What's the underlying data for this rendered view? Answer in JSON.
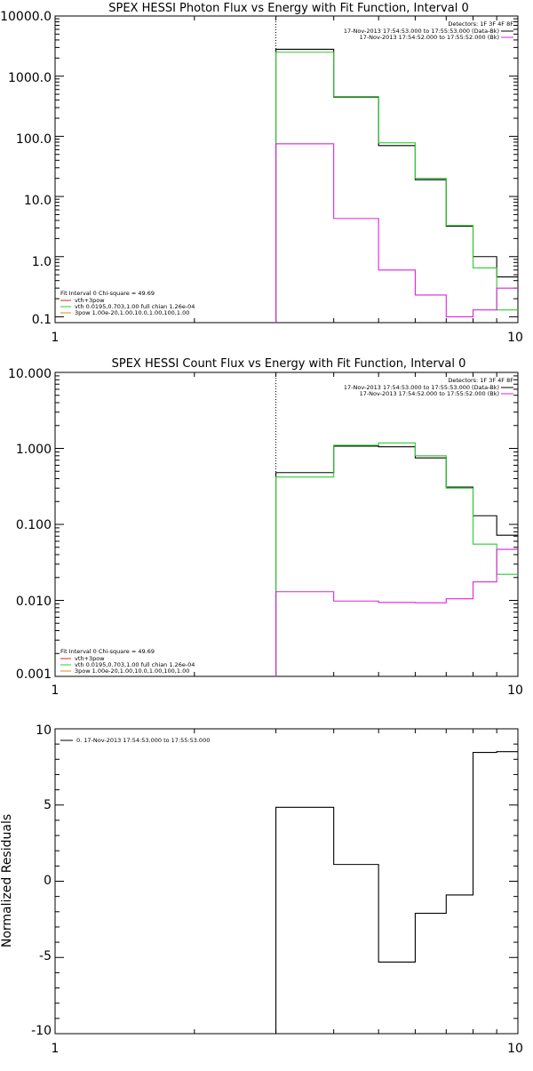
{
  "colors": {
    "background": "#ffffff",
    "axis": "#000000",
    "data": "#000000",
    "model": "#2ecc2e",
    "background_component": "#dd22dd",
    "red_comp": "#dd2222",
    "orange_comp": "#e08a1e"
  },
  "chart_data": [
    {
      "type": "line",
      "subtype": "step",
      "title": "SPEX HESSI Photon Flux vs Energy with Fit Function, Interval 0",
      "x_scale": "log",
      "y_scale": "log",
      "xlim": [
        1,
        10
      ],
      "ylim": [
        0.08,
        10000
      ],
      "x_tick_labels": [
        "1",
        "10"
      ],
      "y_tick_labels": [
        "10000.0",
        "1000.0",
        "100.0",
        "10.0",
        "1.0",
        "0.1"
      ],
      "y_ticks": [
        10000,
        1000,
        100,
        10,
        1,
        0.1
      ],
      "vline_x": 3,
      "bin_edges": [
        3,
        4,
        5,
        6,
        7,
        8,
        9,
        10
      ],
      "series": [
        {
          "values": [
            2800,
            450,
            70,
            19,
            3.2,
            1.0,
            0.46
          ],
          "color": "#000000"
        },
        {
          "values": [
            2500,
            460,
            78,
            20,
            3.3,
            0.65,
            0.13
          ],
          "color": "#2ecc2e"
        },
        {
          "values": [
            75,
            4.3,
            0.6,
            0.23,
            0.1,
            0.13,
            0.3
          ],
          "color": "#dd22dd"
        }
      ],
      "legend_topright": {
        "header": "Detectors: 1F 3F 4F 8F",
        "entries": [
          {
            "text": "17-Nov-2013 17:54:53.000 to 17:55:53.000 (Data-Bk)",
            "color": "#000000"
          },
          {
            "text": "17-Nov-2013 17:54:52.000 to 17:55:52.000 (Bk)",
            "color": "#dd22dd"
          }
        ]
      },
      "legend_bottomleft": {
        "header": "Fit Interval 0   Chi-square = 49.69",
        "entries": [
          {
            "text": "vth+3pow",
            "color": "#dd2222"
          },
          {
            "text": "vth 0.0195,0.703,1.00  full chian 1.26e-04",
            "color": "#2ecc2e"
          },
          {
            "text": "3pow 1.00e-20,1.00,10.0,1.00,100,1.00",
            "color": "#e08a1e"
          }
        ]
      }
    },
    {
      "type": "line",
      "subtype": "step",
      "title": "SPEX HESSI Count Flux vs Energy with Fit Function, Interval 0",
      "x_scale": "log",
      "y_scale": "log",
      "xlim": [
        1,
        10
      ],
      "ylim": [
        0.001,
        10
      ],
      "x_tick_labels": [
        "1",
        "10"
      ],
      "y_tick_labels": [
        "10.000",
        "1.000",
        "0.100",
        "0.010",
        "0.001"
      ],
      "y_ticks": [
        10,
        1,
        0.1,
        0.01,
        0.001
      ],
      "vline_x": 3,
      "bin_edges": [
        3,
        4,
        5,
        6,
        7,
        8,
        9,
        10
      ],
      "series": [
        {
          "values": [
            0.48,
            1.07,
            1.05,
            0.75,
            0.31,
            0.13,
            0.072
          ],
          "color": "#000000"
        },
        {
          "values": [
            0.42,
            1.1,
            1.18,
            0.8,
            0.3,
            0.055,
            0.022
          ],
          "color": "#2ecc2e"
        },
        {
          "values": [
            0.013,
            0.0098,
            0.0094,
            0.0093,
            0.0105,
            0.0175,
            0.047
          ],
          "color": "#dd22dd"
        }
      ],
      "legend_topright": {
        "header": "Detectors: 1F 3F 4F 8F",
        "entries": [
          {
            "text": "17-Nov-2013 17:54:53.000 to 17:55:53.000 (Data-Bk)",
            "color": "#000000"
          },
          {
            "text": "17-Nov-2013 17:54:52.000 to 17:55:52.000 (Bk)",
            "color": "#dd22dd"
          }
        ]
      },
      "legend_bottomleft": {
        "header": "Fit Interval 0   Chi-square = 49.69",
        "entries": [
          {
            "text": "vth+3pow",
            "color": "#dd2222"
          },
          {
            "text": "vth 0.0195,0.703,1.00  full chian 1.26e-04",
            "color": "#2ecc2e"
          },
          {
            "text": "3pow 1.00e-20,1.00,10.0,1.00,100,1.00",
            "color": "#e08a1e"
          }
        ]
      }
    },
    {
      "type": "line",
      "subtype": "step",
      "title": "",
      "x_scale": "log",
      "y_scale": "linear",
      "xlim": [
        1,
        10
      ],
      "ylim": [
        -10,
        10
      ],
      "ylabel": "Normalized Residuals",
      "x_tick_labels": [
        "1",
        "10"
      ],
      "y_tick_labels": [
        "10",
        "5",
        "0",
        "-5",
        "-10"
      ],
      "y_ticks": [
        10,
        5,
        0,
        -5,
        -10
      ],
      "bin_edges": [
        3,
        4,
        5,
        6,
        7,
        8,
        9,
        10
      ],
      "series": [
        {
          "values": [
            4.85,
            1.1,
            -5.3,
            -2.1,
            -0.9,
            8.45,
            8.5
          ],
          "color": "#000000",
          "drop_to": -10
        }
      ],
      "legend_topleft": {
        "entries": [
          {
            "text": "0. 17-Nov-2013 17:54:53.000 to 17:55:53.000",
            "color": "#000000"
          }
        ]
      }
    }
  ]
}
